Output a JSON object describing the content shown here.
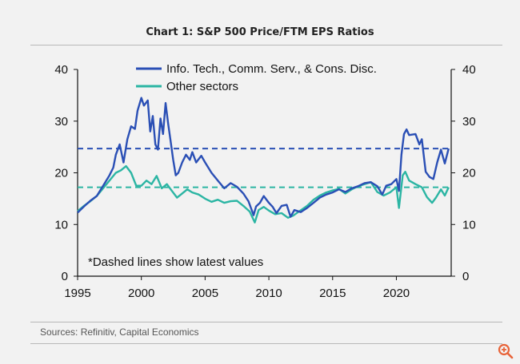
{
  "chart_data": {
    "type": "line",
    "title": "Chart 1: S&P 500 Price/FTM EPS Ratios",
    "xlim": [
      1995,
      2024.3
    ],
    "ylim": [
      0,
      40
    ],
    "x_ticks": [
      1995,
      2000,
      2005,
      2010,
      2015,
      2020
    ],
    "y_ticks": [
      0,
      10,
      20,
      30,
      40
    ],
    "right_axis_ticks": [
      0,
      10,
      20,
      30,
      40
    ],
    "note": "*Dashed lines show latest values",
    "source": "Sources: Refinitiv, Capital Economics",
    "series": [
      {
        "name": "Info. Tech., Comm. Serv., & Cons. Disc.",
        "color": "#2a4fb5",
        "dashed_latest": 24.7,
        "points": [
          [
            1995,
            12.3
          ],
          [
            1995.5,
            13.5
          ],
          [
            1996,
            14.6
          ],
          [
            1996.5,
            15.5
          ],
          [
            1997,
            17.5
          ],
          [
            1997.5,
            19.5
          ],
          [
            1997.8,
            21
          ],
          [
            1998,
            23.5
          ],
          [
            1998.3,
            25.5
          ],
          [
            1998.6,
            22
          ],
          [
            1998.9,
            26.5
          ],
          [
            1999.2,
            29
          ],
          [
            1999.5,
            28.5
          ],
          [
            1999.7,
            32
          ],
          [
            2000,
            34.5
          ],
          [
            2000.2,
            33
          ],
          [
            2000.5,
            34
          ],
          [
            2000.7,
            28
          ],
          [
            2000.9,
            31
          ],
          [
            2001.1,
            25.5
          ],
          [
            2001.3,
            24.5
          ],
          [
            2001.5,
            30.5
          ],
          [
            2001.7,
            27.5
          ],
          [
            2001.9,
            33.5
          ],
          [
            2002.1,
            29.5
          ],
          [
            2002.3,
            26
          ],
          [
            2002.5,
            22.5
          ],
          [
            2002.7,
            19.5
          ],
          [
            2002.9,
            20
          ],
          [
            2003.2,
            22
          ],
          [
            2003.5,
            23.5
          ],
          [
            2003.8,
            22.5
          ],
          [
            2004,
            24
          ],
          [
            2004.3,
            22
          ],
          [
            2004.7,
            23.3
          ],
          [
            2005,
            22
          ],
          [
            2005.5,
            20
          ],
          [
            2006,
            18.5
          ],
          [
            2006.5,
            17
          ],
          [
            2007,
            18
          ],
          [
            2007.5,
            17.3
          ],
          [
            2008,
            16
          ],
          [
            2008.4,
            14.5
          ],
          [
            2008.8,
            11.8
          ],
          [
            2009,
            13.5
          ],
          [
            2009.3,
            14.2
          ],
          [
            2009.6,
            15.5
          ],
          [
            2010,
            14.2
          ],
          [
            2010.3,
            13.4
          ],
          [
            2010.6,
            12.2
          ],
          [
            2011,
            13.6
          ],
          [
            2011.4,
            13.8
          ],
          [
            2011.7,
            11.5
          ],
          [
            2012,
            12.8
          ],
          [
            2012.5,
            12.4
          ],
          [
            2013,
            13.2
          ],
          [
            2013.5,
            14.2
          ],
          [
            2014,
            15.2
          ],
          [
            2014.5,
            15.8
          ],
          [
            2015,
            16.2
          ],
          [
            2015.5,
            16.8
          ],
          [
            2016,
            16.3
          ],
          [
            2016.5,
            17
          ],
          [
            2017,
            17.4
          ],
          [
            2017.5,
            18
          ],
          [
            2018,
            18.2
          ],
          [
            2018.5,
            17.4
          ],
          [
            2018.9,
            15.8
          ],
          [
            2019.2,
            17.5
          ],
          [
            2019.6,
            17.8
          ],
          [
            2020,
            18.8
          ],
          [
            2020.2,
            16.5
          ],
          [
            2020.4,
            23.5
          ],
          [
            2020.6,
            27.5
          ],
          [
            2020.8,
            28.4
          ],
          [
            2021,
            27.3
          ],
          [
            2021.5,
            27.5
          ],
          [
            2021.8,
            25.5
          ],
          [
            2022,
            26.5
          ],
          [
            2022.3,
            20.2
          ],
          [
            2022.6,
            19.2
          ],
          [
            2022.9,
            18.8
          ],
          [
            2023.2,
            22
          ],
          [
            2023.5,
            24.5
          ],
          [
            2023.8,
            21.8
          ],
          [
            2024.1,
            24.7
          ]
        ]
      },
      {
        "name": "Other sectors",
        "color": "#2bb5a3",
        "dashed_latest": 17.2,
        "points": [
          [
            1995,
            12.6
          ],
          [
            1995.5,
            13.6
          ],
          [
            1996,
            14.5
          ],
          [
            1996.5,
            15.5
          ],
          [
            1997,
            17
          ],
          [
            1997.5,
            18.5
          ],
          [
            1998,
            20
          ],
          [
            1998.4,
            20.5
          ],
          [
            1998.8,
            21.3
          ],
          [
            1999.2,
            20
          ],
          [
            1999.6,
            17.5
          ],
          [
            2000,
            17.5
          ],
          [
            2000.4,
            18.5
          ],
          [
            2000.8,
            17.8
          ],
          [
            2001.2,
            19.4
          ],
          [
            2001.6,
            17
          ],
          [
            2002,
            17.8
          ],
          [
            2002.4,
            16.5
          ],
          [
            2002.8,
            15.2
          ],
          [
            2003.2,
            16
          ],
          [
            2003.6,
            16.8
          ],
          [
            2004,
            16.2
          ],
          [
            2004.5,
            15.8
          ],
          [
            2005,
            15
          ],
          [
            2005.5,
            14.4
          ],
          [
            2006,
            14.8
          ],
          [
            2006.5,
            14.2
          ],
          [
            2007,
            14.5
          ],
          [
            2007.5,
            14.6
          ],
          [
            2008,
            13.6
          ],
          [
            2008.5,
            12.5
          ],
          [
            2008.9,
            10.4
          ],
          [
            2009.2,
            12.8
          ],
          [
            2009.6,
            13.4
          ],
          [
            2010,
            12.7
          ],
          [
            2010.5,
            12
          ],
          [
            2011,
            12.2
          ],
          [
            2011.5,
            11.3
          ],
          [
            2011.9,
            11.7
          ],
          [
            2012.3,
            12.4
          ],
          [
            2013,
            13.6
          ],
          [
            2013.5,
            14.8
          ],
          [
            2014,
            15.6
          ],
          [
            2014.5,
            16.2
          ],
          [
            2015,
            16.6
          ],
          [
            2015.5,
            16.9
          ],
          [
            2016,
            16
          ],
          [
            2016.5,
            16.8
          ],
          [
            2017,
            17.4
          ],
          [
            2017.5,
            17.8
          ],
          [
            2018,
            18.2
          ],
          [
            2018.5,
            16.3
          ],
          [
            2019,
            15.6
          ],
          [
            2019.5,
            16.2
          ],
          [
            2020,
            17.2
          ],
          [
            2020.2,
            13.2
          ],
          [
            2020.5,
            19.5
          ],
          [
            2020.7,
            20.2
          ],
          [
            2021,
            18.5
          ],
          [
            2021.5,
            17.8
          ],
          [
            2022,
            17.2
          ],
          [
            2022.4,
            15.3
          ],
          [
            2022.8,
            14.2
          ],
          [
            2023.1,
            15.2
          ],
          [
            2023.5,
            16.8
          ],
          [
            2023.8,
            15.6
          ],
          [
            2024.1,
            17.2
          ]
        ]
      }
    ]
  },
  "icons": {
    "zoom": "zoom-in-icon"
  }
}
